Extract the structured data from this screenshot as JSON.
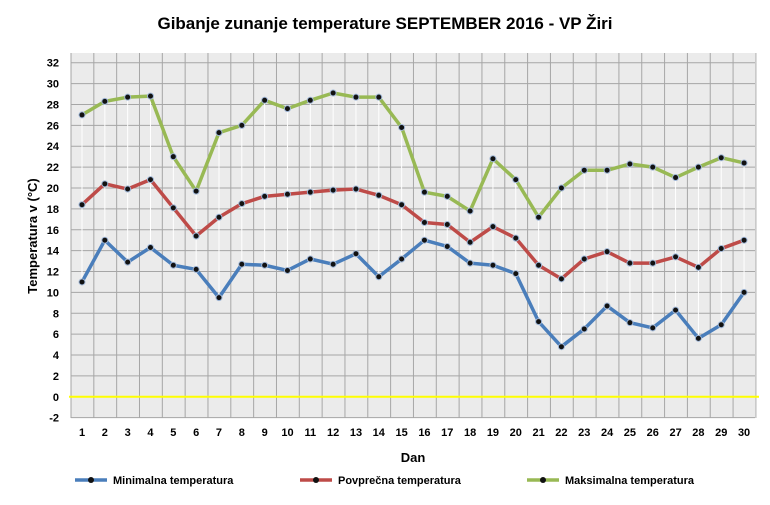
{
  "chart_data": {
    "type": "line",
    "title": "Gibanje zunanje temperature SEPTEMBER 2016 - VP Žiri",
    "xlabel": "Dan",
    "ylabel": "Temperatura v (°C)",
    "ylim": [
      -2,
      32
    ],
    "yticks": [
      -2,
      0,
      2,
      4,
      6,
      8,
      10,
      12,
      14,
      16,
      18,
      20,
      22,
      24,
      26,
      28,
      30,
      32
    ],
    "x": [
      1,
      2,
      3,
      4,
      5,
      6,
      7,
      8,
      9,
      10,
      11,
      12,
      13,
      14,
      15,
      16,
      17,
      18,
      19,
      20,
      21,
      22,
      23,
      24,
      25,
      26,
      27,
      28,
      29,
      30
    ],
    "grid": true,
    "legend_position": "bottom",
    "series": [
      {
        "name": "Minimalna temperatura",
        "color": "#4a7ebb",
        "values": [
          11.0,
          15.0,
          12.9,
          14.3,
          12.6,
          12.2,
          9.5,
          12.7,
          12.6,
          12.1,
          13.2,
          12.7,
          13.7,
          11.5,
          13.2,
          15.0,
          14.4,
          12.8,
          12.6,
          11.8,
          7.2,
          4.8,
          6.5,
          8.7,
          7.1,
          6.6,
          8.3,
          5.6,
          6.9,
          10.0
        ]
      },
      {
        "name": "Povprečna temperatura",
        "color": "#be4b48",
        "values": [
          18.4,
          20.4,
          19.9,
          20.8,
          18.1,
          15.4,
          17.2,
          18.5,
          19.2,
          19.4,
          19.6,
          19.8,
          19.9,
          19.3,
          18.4,
          16.7,
          16.5,
          14.8,
          16.3,
          15.2,
          12.6,
          11.3,
          13.2,
          13.9,
          12.8,
          12.8,
          13.4,
          12.4,
          14.2,
          15.0
        ]
      },
      {
        "name": "Maksimalna temperatura",
        "color": "#98b954",
        "values": [
          27.0,
          28.3,
          28.7,
          28.8,
          23.0,
          19.7,
          25.3,
          26.0,
          28.4,
          27.6,
          28.4,
          29.1,
          28.7,
          28.7,
          25.8,
          19.6,
          19.2,
          17.8,
          22.8,
          20.8,
          17.2,
          20.0,
          21.7,
          21.7,
          22.3,
          22.0,
          21.0,
          22.0,
          22.9,
          22.4
        ]
      }
    ],
    "reference_line": {
      "value": 0,
      "color": "#ffff00"
    }
  }
}
